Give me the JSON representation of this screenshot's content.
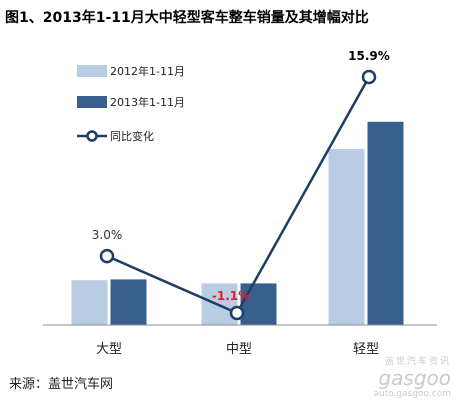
{
  "chart_data": {
    "type": "bar",
    "title": "图1、2013年1-11月大中轻型客车整车销量及其增幅对比",
    "categories": [
      "大型",
      "中型",
      "轻型"
    ],
    "series": [
      {
        "name": "2012年1-11月",
        "color": "#b8cce4",
        "values": [
          28,
          26,
          110
        ]
      },
      {
        "name": "2013年1-11月",
        "color": "#37608f",
        "values": [
          28.5,
          26,
          127
        ]
      }
    ],
    "line_series": {
      "name": "同比变化",
      "color": "#1f3d66",
      "values": [
        3.0,
        -1.1,
        15.9
      ],
      "labels": [
        "3.0%",
        "-1.1%",
        "15.9%"
      ],
      "label_colors": [
        "#333333",
        "#e02020",
        "#000000"
      ]
    },
    "legend_position": "top-left",
    "grid": false
  },
  "source": "来源：盖世汽车网",
  "watermark": {
    "cn": "盖世汽车资讯",
    "logo": "gasgoo",
    "url": "auto.gasgoo.com"
  }
}
